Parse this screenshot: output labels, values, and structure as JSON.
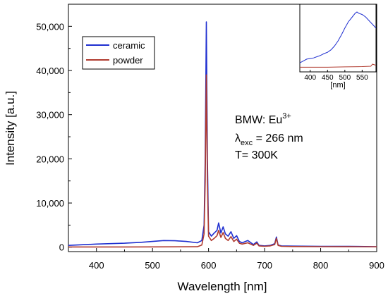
{
  "chart_data": {
    "type": "line",
    "xlabel": "Wavelength [nm]",
    "ylabel": "Intensity [a.u.]",
    "xlim": [
      350,
      900
    ],
    "ylim": [
      -1000,
      55000
    ],
    "x_ticks": [
      400,
      500,
      600,
      700,
      800,
      900
    ],
    "x_tick_labels": [
      "400",
      "500",
      "600",
      "700",
      "800",
      "900"
    ],
    "y_ticks": [
      0,
      10000,
      20000,
      30000,
      40000,
      50000
    ],
    "y_tick_labels": [
      "0",
      "10,000",
      "20,000",
      "30,000",
      "40,000",
      "50,000"
    ],
    "legend": {
      "position": "top-left",
      "entries": [
        "ceramic",
        "powder"
      ]
    },
    "annotation": {
      "line1_main": "BMW: Eu",
      "line1_sup": "3+",
      "line2_lambda": "λ",
      "line2_sub": "exc",
      "line2_rest": " = 266 nm",
      "line3": "T= 300K"
    },
    "series": [
      {
        "name": "ceramic",
        "color": "#1f2fd0",
        "x": [
          350,
          400,
          450,
          480,
          500,
          520,
          540,
          560,
          580,
          588,
          592,
          594,
          596,
          598,
          600,
          605,
          610,
          615,
          618,
          622,
          626,
          630,
          635,
          640,
          645,
          650,
          655,
          660,
          670,
          680,
          686,
          690,
          700,
          710,
          718,
          721,
          724,
          730,
          750,
          800,
          850,
          900
        ],
        "y": [
          400,
          700,
          900,
          1100,
          1300,
          1500,
          1450,
          1300,
          1000,
          1500,
          5000,
          20000,
          51000,
          20000,
          3500,
          2500,
          3200,
          3800,
          5500,
          3200,
          4600,
          3000,
          2500,
          3500,
          2000,
          2600,
          1300,
          1000,
          1500,
          600,
          1200,
          400,
          300,
          400,
          800,
          2300,
          500,
          300,
          250,
          200,
          200,
          100
        ]
      },
      {
        "name": "powder",
        "color": "#b03a2e",
        "x": [
          350,
          400,
          450,
          500,
          550,
          580,
          588,
          592,
          594,
          596,
          598,
          600,
          605,
          610,
          615,
          618,
          622,
          626,
          630,
          635,
          640,
          645,
          650,
          655,
          660,
          670,
          680,
          686,
          690,
          700,
          710,
          718,
          721,
          724,
          730,
          750,
          800,
          850,
          900
        ],
        "y": [
          50,
          60,
          60,
          70,
          80,
          100,
          500,
          3000,
          15000,
          39000,
          15000,
          2500,
          1500,
          2000,
          2600,
          3800,
          2200,
          3300,
          2000,
          1500,
          2400,
          1300,
          1800,
          900,
          700,
          1000,
          400,
          900,
          300,
          200,
          300,
          600,
          2000,
          400,
          200,
          150,
          120,
          100,
          80
        ]
      }
    ]
  },
  "inset": {
    "xlabel": "[nm]",
    "xlim": [
      370,
      590
    ],
    "ylim": [
      0,
      1
    ],
    "x_ticks": [
      400,
      450,
      500,
      550
    ],
    "x_tick_labels": [
      "400",
      "450",
      "500",
      "550"
    ],
    "series": [
      {
        "name": "ceramic",
        "color": "#1f2fd0",
        "x": [
          370,
          380,
          390,
          400,
          410,
          420,
          430,
          440,
          450,
          460,
          470,
          480,
          490,
          500,
          510,
          520,
          530,
          535,
          540,
          550,
          560,
          570,
          580,
          590
        ],
        "y": [
          0.1,
          0.13,
          0.16,
          0.17,
          0.18,
          0.2,
          0.22,
          0.25,
          0.27,
          0.31,
          0.37,
          0.45,
          0.55,
          0.66,
          0.76,
          0.83,
          0.9,
          0.92,
          0.9,
          0.88,
          0.84,
          0.78,
          0.72,
          0.66
        ]
      },
      {
        "name": "powder",
        "color": "#b03a2e",
        "x": [
          370,
          400,
          450,
          500,
          550,
          575,
          580,
          590
        ],
        "y": [
          0.03,
          0.03,
          0.03,
          0.035,
          0.04,
          0.045,
          0.08,
          0.06
        ]
      }
    ]
  }
}
